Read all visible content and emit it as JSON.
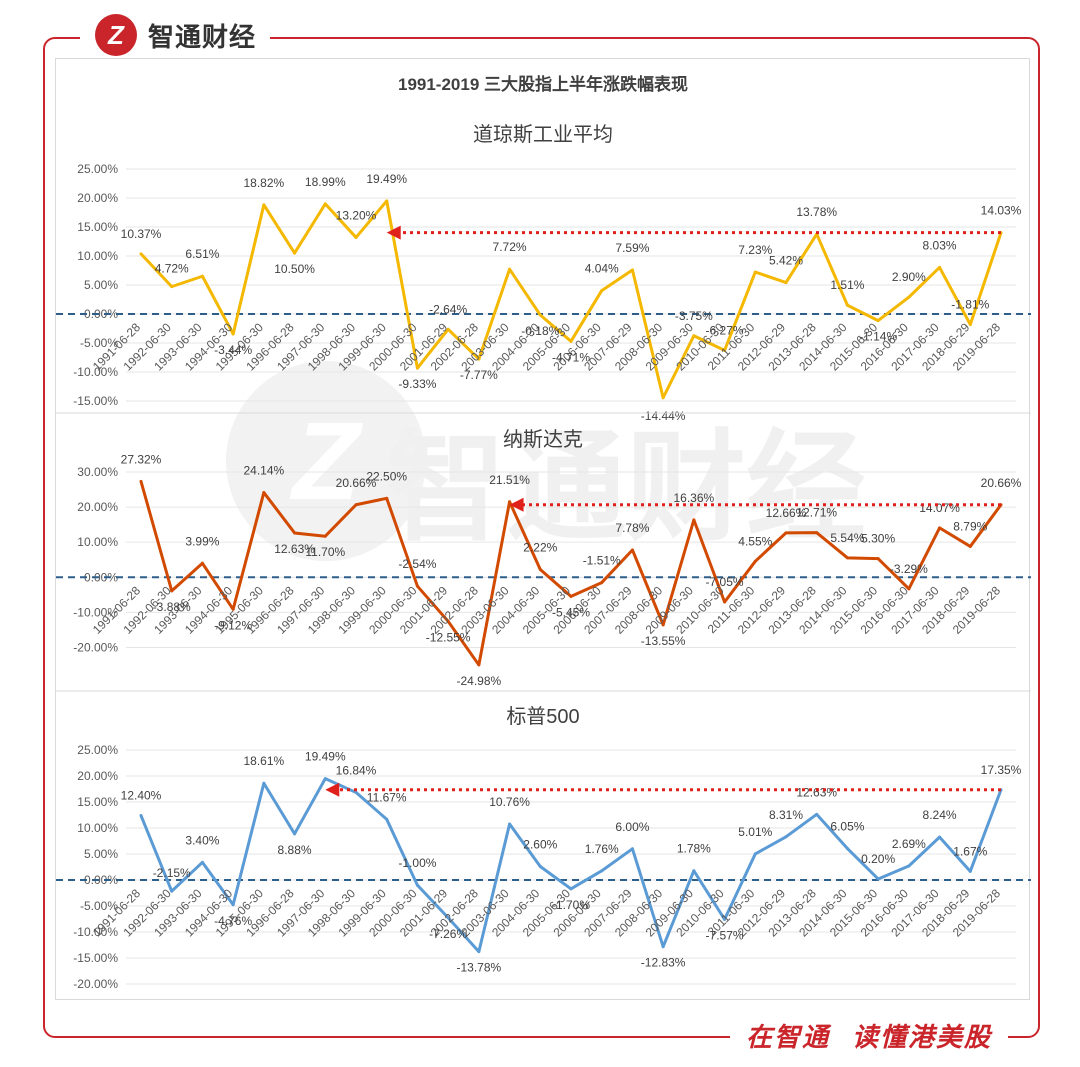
{
  "brand": {
    "name": "智通财经",
    "logo_icon": "zhitong-logo-icon"
  },
  "slogan": {
    "part1": "在智通",
    "part2": "读懂港美股"
  },
  "colors": {
    "frame": "#c9252b",
    "dow": "#f5b800",
    "nasdaq": "#d24a00",
    "sp": "#5b9bd5",
    "zero_line": "#2e5f8a",
    "arrow": "#e0201b"
  },
  "chart_data": {
    "title": "1991-2019 三大股指上半年涨跌幅表现",
    "categories": [
      "1991-06-28",
      "1992-06-30",
      "1993-06-30",
      "1994-06-30",
      "1995-06-30",
      "1996-06-28",
      "1997-06-30",
      "1998-06-30",
      "1999-06-30",
      "2000-06-30",
      "2001-06-29",
      "2002-06-28",
      "2003-06-30",
      "2004-06-30",
      "2005-06-30",
      "2006-06-30",
      "2007-06-29",
      "2008-06-30",
      "2009-06-30",
      "2010-06-30",
      "2011-06-30",
      "2012-06-29",
      "2013-06-28",
      "2014-06-30",
      "2015-06-30",
      "2016-06-30",
      "2017-06-30",
      "2018-06-29",
      "2019-06-28"
    ],
    "panels": [
      {
        "type": "line",
        "name": "道琼斯工业平均",
        "values": [
          10.37,
          4.72,
          6.51,
          -3.44,
          18.82,
          10.5,
          18.99,
          13.2,
          19.49,
          -9.33,
          -2.64,
          -7.77,
          7.72,
          -0.18,
          -4.71,
          4.04,
          7.59,
          -14.44,
          -3.75,
          -6.27,
          7.23,
          5.42,
          13.78,
          1.51,
          -1.14,
          2.9,
          8.03,
          -1.81,
          14.03
        ],
        "labels": [
          "10.37%",
          "4.72%",
          "6.51%",
          "-3.44%",
          "18.82%",
          "10.50%",
          "18.99%",
          "13.20%",
          "19.49%",
          "-9.33%",
          "-2.64%",
          "-7.77%",
          "7.72%",
          "-0.18%",
          "-4.71%",
          "4.04%",
          "7.59%",
          "-14.44%",
          "-3.75%",
          "-6.27%",
          "7.23%",
          "5.42%",
          "13.78%",
          "1.51%",
          "-1.14%",
          "2.90%",
          "8.03%",
          "-1.81%",
          "14.03%"
        ],
        "yticks": [
          "25.00%",
          "20.00%",
          "15.00%",
          "10.00%",
          "5.00%",
          "0.00%",
          "-5.00%",
          "-10.00%",
          "-15.00%"
        ],
        "ylim": [
          -15,
          25
        ],
        "arrow": {
          "from": "2019-06-28",
          "to": "1999-06-30",
          "value": 14.03
        }
      },
      {
        "type": "line",
        "name": "纳斯达克",
        "values": [
          27.32,
          -3.88,
          3.99,
          -9.12,
          24.14,
          12.63,
          11.7,
          20.66,
          22.5,
          -2.54,
          -12.55,
          -24.98,
          21.51,
          2.22,
          -5.45,
          -1.51,
          7.78,
          -13.55,
          16.36,
          -7.05,
          4.55,
          12.66,
          12.71,
          5.54,
          5.3,
          -3.29,
          14.07,
          8.79,
          20.66
        ],
        "labels": [
          "27.32%",
          "-3.88%",
          "3.99%",
          "-9.12%",
          "24.14%",
          "12.63%",
          "11.70%",
          "20.66%",
          "22.50%",
          "-2.54%",
          "-12.55%",
          "-24.98%",
          "21.51%",
          "2.22%",
          "-5.45%",
          "-1.51%",
          "7.78%",
          "-13.55%",
          "16.36%",
          "-7.05%",
          "4.55%",
          "12.66%",
          "12.71%",
          "5.54%",
          "5.30%",
          "-3.29%",
          "14.07%",
          "8.79%",
          "20.66%"
        ],
        "yticks": [
          "30.00%",
          "20.00%",
          "10.00%",
          "0.00%",
          "-10.00%",
          "-20.00%"
        ],
        "ylim": [
          -25,
          30
        ],
        "arrow": {
          "from": "2019-06-28",
          "to": "2003-06-30",
          "value": 20.66
        }
      },
      {
        "type": "line",
        "name": "标普500",
        "values": [
          12.4,
          -2.15,
          3.4,
          -4.76,
          18.61,
          8.88,
          19.49,
          16.84,
          11.67,
          -1.0,
          -7.26,
          -13.78,
          10.76,
          2.6,
          -1.7,
          1.76,
          6.0,
          -12.83,
          1.78,
          -7.57,
          5.01,
          8.31,
          12.63,
          6.05,
          0.2,
          2.69,
          8.24,
          1.67,
          17.35
        ],
        "labels": [
          "12.40%",
          "-2.15%",
          "3.40%",
          "-4.76%",
          "18.61%",
          "8.88%",
          "19.49%",
          "16.84%",
          "11.67%",
          "-1.00%",
          "-7.26%",
          "-13.78%",
          "10.76%",
          "2.60%",
          "-1.70%",
          "1.76%",
          "6.00%",
          "-12.83%",
          "1.78%",
          "-7.57%",
          "5.01%",
          "8.31%",
          "12.63%",
          "6.05%",
          "0.20%",
          "2.69%",
          "8.24%",
          "1.67%",
          "17.35%"
        ],
        "yticks": [
          "25.00%",
          "20.00%",
          "15.00%",
          "10.00%",
          "5.00%",
          "0.00%",
          "-5.00%",
          "-10.00%",
          "-15.00%",
          "-20.00%"
        ],
        "ylim": [
          -20,
          25
        ],
        "arrow": {
          "from": "2019-06-28",
          "to": "1997-06-30",
          "value": 17.35
        }
      }
    ]
  }
}
